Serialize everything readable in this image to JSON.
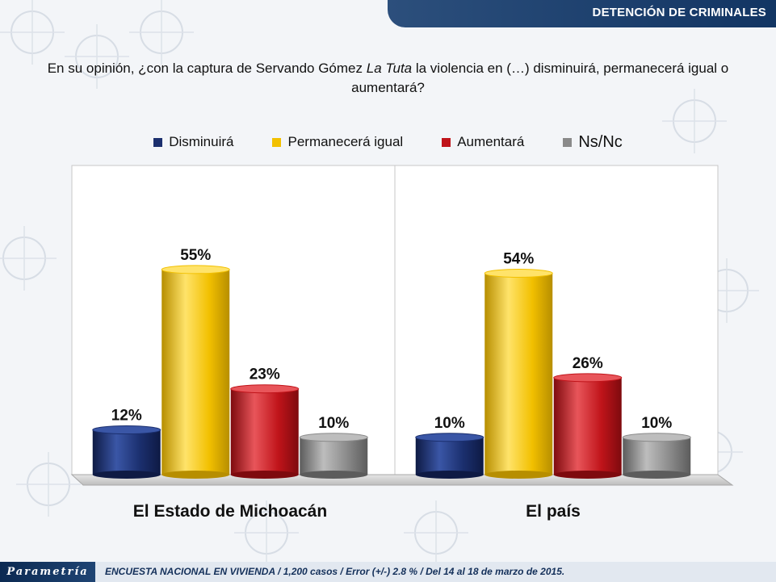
{
  "header": {
    "title": "DETENCIÓN DE CRIMINALES"
  },
  "question": {
    "part1": "En su opinión, ¿con la captura de Servando Gómez ",
    "emph": "La Tuta",
    "part2": " la violencia en (…) disminuirá, permanecerá igual o aumentará?"
  },
  "chart_data": {
    "type": "bar",
    "title": "",
    "categories": [
      "El Estado de Michoacán",
      "El país"
    ],
    "series": [
      {
        "name": "Disminuirá",
        "values": [
          12,
          10
        ],
        "color": "#1b2f6e"
      },
      {
        "name": "Permanecerá igual",
        "values": [
          55,
          54
        ],
        "color": "#f2c000"
      },
      {
        "name": "Aumentará",
        "values": [
          23,
          26
        ],
        "color": "#c0141a"
      },
      {
        "name": "Ns/Nc",
        "values": [
          10,
          10
        ],
        "color": "#8a8a8a"
      }
    ],
    "value_labels": [
      [
        "12%",
        "55%",
        "23%",
        "10%"
      ],
      [
        "10%",
        "54%",
        "26%",
        "10%"
      ]
    ],
    "xlabel": "",
    "ylabel": "",
    "ylim": [
      0,
      60
    ],
    "grid": false,
    "legend": "top-center"
  },
  "footer": {
    "logo": "Parametría",
    "text": "ENCUESTA NACIONAL EN VIVIENDA / 1,200 casos / Error (+/-) 2.8 % / Del 14 al 18 de marzo de 2015."
  }
}
